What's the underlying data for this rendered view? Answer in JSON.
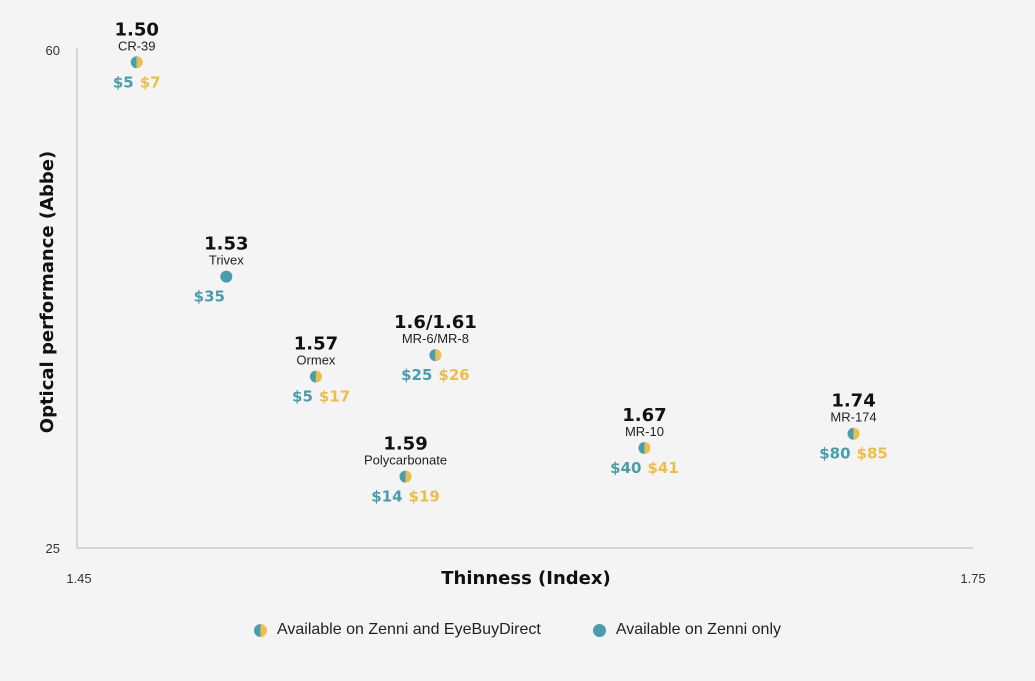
{
  "colors": {
    "teal": "#4b9dab",
    "gold": "#ecbd4f",
    "axis": "#b9b9b9",
    "background": "#f4f4f4"
  },
  "chart_data": {
    "type": "scatter",
    "xlabel": "Thinness (Index)",
    "ylabel": "Optical performance (Abbe)",
    "xlim": [
      1.45,
      1.75
    ],
    "ylim": [
      25,
      60
    ],
    "x_ticks": [
      "1.45",
      "1.75"
    ],
    "y_ticks": [
      "25",
      "60"
    ],
    "grid": false,
    "legend_position": "bottom",
    "points": [
      {
        "index": "1.50",
        "material": "CR-39",
        "x": 1.47,
        "y": 59,
        "availability": "both",
        "zenni_price": "$5",
        "ebd_price": "$7"
      },
      {
        "index": "1.53",
        "material": "Trivex",
        "x": 1.5,
        "y": 44,
        "availability": "zenni",
        "zenni_price": "$35",
        "ebd_price": ""
      },
      {
        "index": "1.57",
        "material": "Ormex",
        "x": 1.53,
        "y": 37,
        "availability": "both",
        "zenni_price": "$5",
        "ebd_price": "$17"
      },
      {
        "index": "1.59",
        "material": "Polycarbonate",
        "x": 1.56,
        "y": 30,
        "availability": "both",
        "zenni_price": "$14",
        "ebd_price": "$19"
      },
      {
        "index": "1.6/1.61",
        "material": "MR-6/MR-8",
        "x": 1.57,
        "y": 38.5,
        "availability": "both",
        "zenni_price": "$25",
        "ebd_price": "$26"
      },
      {
        "index": "1.67",
        "material": "MR-10",
        "x": 1.64,
        "y": 32,
        "availability": "both",
        "zenni_price": "$40",
        "ebd_price": "$41"
      },
      {
        "index": "1.74",
        "material": "MR-174",
        "x": 1.71,
        "y": 33,
        "availability": "both",
        "zenni_price": "$80",
        "ebd_price": "$85"
      }
    ]
  },
  "legend": {
    "both_label": "Available on Zenni and EyeBuyDirect",
    "zenni_label": "Available on Zenni only"
  }
}
